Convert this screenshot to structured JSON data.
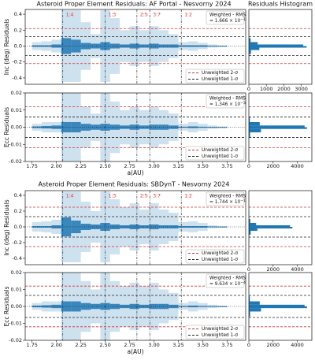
{
  "chart_data": [
    {
      "title": "Asteroid Proper Element Residuals: AF Portal - Nesvorny 2024",
      "hist_title": "Residuals Histogram",
      "xlabel": "a(AU)",
      "xlim": [
        1.68,
        3.94
      ],
      "xticks": [
        1.75,
        {
          "value": 2.0,
          "label": "2.00"
        },
        2.25,
        {
          "value": 2.5,
          "label": "2.50"
        },
        2.75,
        {
          "value": 3.0,
          "label": "3.00"
        },
        3.25,
        {
          "value": 3.5,
          "label": "3.50"
        },
        3.75
      ],
      "resonances": [
        {
          "label": "1:4",
          "a": 2.065
        },
        {
          "label": "1:3",
          "a": 2.5
        },
        {
          "label": "2:5",
          "a": 2.825
        },
        {
          "label": "3:7",
          "a": 2.957
        },
        {
          "label": "1:2",
          "a": 3.28
        }
      ],
      "panels": [
        {
          "type": "scatter",
          "ylabel": "Inc (deg) Residuals",
          "color": "#1f77b4",
          "ylim": [
            -0.48,
            0.46
          ],
          "yticks": [
            -0.4,
            -0.2,
            {
              "value": 0,
              "label": "0.0"
            },
            0.2,
            0.4
          ],
          "x": [
            1.8,
            1.9,
            2.0,
            2.1,
            2.2,
            2.3,
            2.4,
            2.5,
            2.6,
            2.7,
            2.8,
            2.9,
            3.0,
            3.1,
            3.2,
            3.3,
            3.4,
            3.5,
            3.6,
            3.7
          ],
          "spread": [
            0.05,
            0.06,
            0.08,
            0.45,
            0.45,
            0.3,
            0.15,
            0.45,
            0.35,
            0.2,
            0.25,
            0.2,
            0.25,
            0.2,
            0.15,
            0.05,
            0.06,
            0.04,
            0.02,
            0.01
          ],
          "core": [
            0.01,
            0.01,
            0.02,
            0.1,
            0.08,
            0.04,
            0.03,
            0.05,
            0.03,
            0.02,
            0.03,
            0.02,
            0.03,
            0.02,
            0.02,
            0.01,
            0.01,
            0.01,
            0.005,
            0.003
          ],
          "rms_title": "Weighted - RMS",
          "rms_text": "= 1.666 × 10",
          "rms_exp": "−1",
          "legend": [
            {
              "label": "Unweighted 2-σ",
              "color": "#e03030",
              "value": 0.22
            },
            {
              "label": "Unweighted 1-σ",
              "color": "#222222",
              "value": 0.12
            }
          ],
          "hist": {
            "bins": [
              -0.3,
              -0.2,
              -0.1,
              -0.05,
              -0.02,
              0,
              0.02,
              0.05,
              0.1,
              0.2,
              0.3
            ],
            "counts": [
              5,
              20,
              120,
              600,
              3300,
              3100,
              500,
              100,
              20,
              5
            ],
            "xlim": [
              0,
              3600
            ],
            "xticks": [
              0,
              1000,
              2000,
              3000
            ]
          }
        },
        {
          "type": "scatter",
          "ylabel": "Ecc Residuals",
          "color": "#1f77b4",
          "ylim": [
            -0.02,
            0.02
          ],
          "yticks": [
            -0.02,
            -0.01,
            {
              "value": 0,
              "label": "0.00"
            },
            0.01,
            0.02
          ],
          "x": [
            1.8,
            1.9,
            2.0,
            2.1,
            2.2,
            2.3,
            2.4,
            2.5,
            2.6,
            2.7,
            2.8,
            2.9,
            3.0,
            3.1,
            3.2,
            3.3,
            3.4,
            3.5,
            3.6,
            3.7
          ],
          "spread": [
            0.002,
            0.003,
            0.003,
            0.02,
            0.02,
            0.012,
            0.008,
            0.02,
            0.015,
            0.01,
            0.012,
            0.01,
            0.012,
            0.01,
            0.008,
            0.002,
            0.003,
            0.002,
            0.001,
            0.0005
          ],
          "core": [
            0.0005,
            0.0007,
            0.001,
            0.003,
            0.003,
            0.002,
            0.0015,
            0.002,
            0.0015,
            0.001,
            0.0015,
            0.001,
            0.0015,
            0.0015,
            0.001,
            0.0003,
            0.0005,
            0.0003,
            0.0002,
            0.0001
          ],
          "rms_title": "Weighted - RMS",
          "rms_text": "= 1.346 × 10",
          "rms_exp": "−3",
          "legend": [
            {
              "label": "Unweighted 2-σ",
              "color": "#e03030",
              "value": 0.012
            },
            {
              "label": "Unweighted 1-σ",
              "color": "#222222",
              "value": 0.006
            }
          ],
          "hist": {
            "bins": [
              -0.012,
              -0.006,
              -0.003,
              -0.001,
              0,
              0.001,
              0.003,
              0.006,
              0.012
            ],
            "counts": [
              10,
              100,
              1000,
              4800,
              4600,
              900,
              80,
              10
            ],
            "xlim": [
              0,
              5200
            ],
            "xticks": [
              0,
              2000,
              4000
            ]
          }
        }
      ]
    },
    {
      "title": "Asteroid Proper Element Residuals: SBDynT - Nesvorny 2024",
      "xlabel": "a(AU)",
      "xlim": [
        1.68,
        3.94
      ],
      "xticks": [
        1.75,
        {
          "value": 2.0,
          "label": "2.00"
        },
        2.25,
        {
          "value": 2.5,
          "label": "2.50"
        },
        2.75,
        {
          "value": 3.0,
          "label": "3.00"
        },
        3.25,
        {
          "value": 3.5,
          "label": "3.50"
        },
        3.75
      ],
      "resonances": [
        {
          "label": "1:4",
          "a": 2.065
        },
        {
          "label": "1:3",
          "a": 2.5
        },
        {
          "label": "2:5",
          "a": 2.825
        },
        {
          "label": "3:7",
          "a": 2.957
        },
        {
          "label": "1:2",
          "a": 3.28
        }
      ],
      "panels": [
        {
          "type": "scatter",
          "ylabel": "Inc (deg) Residuals",
          "color": "#1f77b4",
          "ylim": [
            -0.48,
            0.46
          ],
          "yticks": [
            -0.4,
            -0.2,
            {
              "value": 0,
              "label": "0.0"
            },
            0.2,
            0.4
          ],
          "x": [
            1.8,
            1.9,
            2.0,
            2.1,
            2.2,
            2.3,
            2.4,
            2.5,
            2.6,
            2.7,
            2.8,
            2.9,
            3.0,
            3.1,
            3.2,
            3.3,
            3.4,
            3.5,
            3.6,
            3.7
          ],
          "spread": [
            0.06,
            0.07,
            0.09,
            0.45,
            0.45,
            0.32,
            0.2,
            0.45,
            0.35,
            0.25,
            0.3,
            0.22,
            0.3,
            0.22,
            0.18,
            0.06,
            0.07,
            0.05,
            0.02,
            0.01
          ],
          "core": [
            0.01,
            0.01,
            0.02,
            0.12,
            0.08,
            0.04,
            0.03,
            0.05,
            0.03,
            0.02,
            0.03,
            0.02,
            0.03,
            0.02,
            0.02,
            0.01,
            0.01,
            0.01,
            0.005,
            0.003
          ],
          "rms_title": "Weighted - RMS",
          "rms_text": "= 1.744 × 10",
          "rms_exp": "−1",
          "legend": [
            {
              "label": "Unweighted 2-σ",
              "color": "#e03030",
              "value": 0.25
            },
            {
              "label": "Unweighted 1-σ",
              "color": "#222222",
              "value": 0.13
            }
          ],
          "hist": {
            "bins": [
              -0.3,
              -0.2,
              -0.1,
              -0.05,
              -0.02,
              0,
              0.02,
              0.05,
              0.1,
              0.2,
              0.3
            ],
            "counts": [
              5,
              25,
              150,
              700,
              3600,
              3400,
              600,
              120,
              25,
              5
            ],
            "xlim": [
              0,
              5200
            ],
            "xticks": [
              0,
              2000,
              4000
            ]
          }
        },
        {
          "type": "scatter",
          "ylabel": "Ecc Residuals",
          "color": "#1f77b4",
          "ylim": [
            -0.02,
            0.02
          ],
          "yticks": [
            -0.02,
            -0.01,
            {
              "value": 0,
              "label": "0.00"
            },
            0.01,
            0.02
          ],
          "x": [
            1.8,
            1.9,
            2.0,
            2.1,
            2.2,
            2.3,
            2.4,
            2.5,
            2.6,
            2.7,
            2.8,
            2.9,
            3.0,
            3.1,
            3.2,
            3.3,
            3.4,
            3.5,
            3.6,
            3.7
          ],
          "spread": [
            0.002,
            0.003,
            0.003,
            0.02,
            0.02,
            0.015,
            0.01,
            0.02,
            0.015,
            0.012,
            0.014,
            0.012,
            0.014,
            0.01,
            0.008,
            0.002,
            0.003,
            0.002,
            0.001,
            0.0005
          ],
          "core": [
            0.0005,
            0.0007,
            0.001,
            0.003,
            0.003,
            0.002,
            0.0015,
            0.002,
            0.0015,
            0.001,
            0.0015,
            0.001,
            0.0015,
            0.0015,
            0.001,
            0.0003,
            0.0005,
            0.0003,
            0.0002,
            0.0001
          ],
          "rms_title": "Weighted - RMS",
          "rms_text": "= 9.634 × 10",
          "rms_exp": "−4",
          "legend": [
            {
              "label": "Unweighted 2-σ",
              "color": "#e03030",
              "value": 0.012
            },
            {
              "label": "Unweighted 1-σ",
              "color": "#222222",
              "value": 0.0065
            }
          ],
          "hist": {
            "bins": [
              -0.012,
              -0.006,
              -0.003,
              -0.001,
              0,
              0.001,
              0.003,
              0.006,
              0.012
            ],
            "counts": [
              10,
              100,
              1000,
              4800,
              4600,
              900,
              80,
              10
            ],
            "xlim": [
              0,
              5200
            ],
            "xticks": [
              0,
              2000,
              4000
            ]
          }
        }
      ]
    }
  ]
}
